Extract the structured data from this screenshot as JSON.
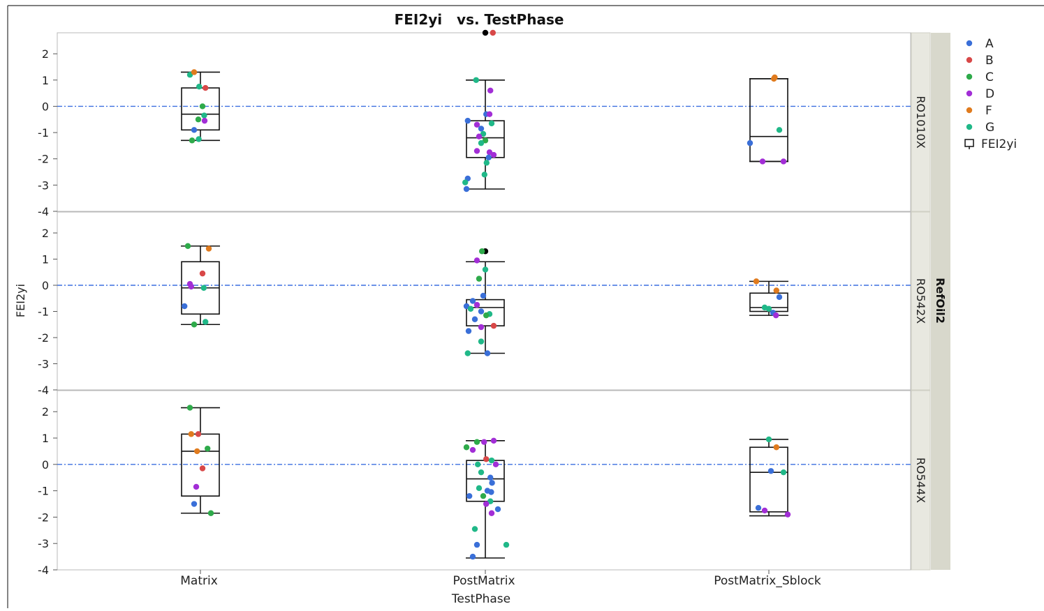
{
  "chart_data": {
    "type": "scatter",
    "title": "FEI2yi   vs. TestPhase",
    "xlabel": "TestPhase",
    "ylabel": "FEI2yi",
    "group_by_label": "RefOil2",
    "categories": [
      "Matrix",
      "PostMatrix",
      "PostMatrix_Sblock"
    ],
    "ylim": [
      -4,
      2.8
    ],
    "yticks": [
      -4,
      -3,
      -2,
      -1,
      0,
      1,
      2
    ],
    "ytick_labels": [
      "-4",
      "-3",
      "-2",
      "-1",
      "0",
      "1",
      "2"
    ],
    "reference_line": 0,
    "legend_placement": "right",
    "legend": [
      {
        "label": "A",
        "color": "#3a6fd8"
      },
      {
        "label": "B",
        "color": "#d84848"
      },
      {
        "label": "C",
        "color": "#2eaa4a"
      },
      {
        "label": "D",
        "color": "#a22ed6"
      },
      {
        "label": "F",
        "color": "#e07b1e"
      },
      {
        "label": "G",
        "color": "#20b888"
      }
    ],
    "box_legend_label": "FEI2yi",
    "colors": {
      "A": "#3a6fd8",
      "B": "#d84848",
      "C": "#2eaa4a",
      "D": "#a22ed6",
      "F": "#e07b1e",
      "G": "#20b888",
      "outlier": "#000000",
      "reference": "#3b6fe0"
    },
    "panels": [
      {
        "label": "RO1010X",
        "boxes": [
          {
            "category": "Matrix",
            "whisker_low": -1.3,
            "q1": -0.9,
            "median": -0.3,
            "q3": 0.7,
            "whisker_high": 1.3
          },
          {
            "category": "PostMatrix",
            "whisker_low": -3.15,
            "q1": -1.95,
            "median": -1.2,
            "q3": -0.55,
            "whisker_high": 1.0
          },
          {
            "category": "PostMatrix_Sblock",
            "whisker_low": -2.1,
            "q1": -2.1,
            "median": -1.15,
            "q3": 1.05,
            "whisker_high": 1.05
          }
        ],
        "points": [
          {
            "c": "Matrix",
            "j": -0.25,
            "y": 1.2,
            "g": "G"
          },
          {
            "c": "Matrix",
            "j": -0.15,
            "y": 1.3,
            "g": "F"
          },
          {
            "c": "Matrix",
            "j": -0.03,
            "y": 0.75,
            "g": "G"
          },
          {
            "c": "Matrix",
            "j": 0.12,
            "y": 0.7,
            "g": "B"
          },
          {
            "c": "Matrix",
            "j": 0.05,
            "y": 0.0,
            "g": "C"
          },
          {
            "c": "Matrix",
            "j": 0.09,
            "y": -0.35,
            "g": "G"
          },
          {
            "c": "Matrix",
            "j": -0.05,
            "y": -0.5,
            "g": "C"
          },
          {
            "c": "Matrix",
            "j": 0.1,
            "y": -0.55,
            "g": "D"
          },
          {
            "c": "Matrix",
            "j": -0.15,
            "y": -0.9,
            "g": "A"
          },
          {
            "c": "Matrix",
            "j": -0.2,
            "y": -1.3,
            "g": "C"
          },
          {
            "c": "Matrix",
            "j": -0.04,
            "y": -1.25,
            "g": "G"
          },
          {
            "c": "PostMatrix",
            "j": 0.0,
            "y": 2.8,
            "g": "outlier"
          },
          {
            "c": "PostMatrix",
            "j": 0.18,
            "y": 2.8,
            "g": "B"
          },
          {
            "c": "PostMatrix",
            "j": -0.22,
            "y": 1.0,
            "g": "G"
          },
          {
            "c": "PostMatrix",
            "j": 0.12,
            "y": 0.6,
            "g": "D"
          },
          {
            "c": "PostMatrix",
            "j": 0.02,
            "y": -0.3,
            "g": "A"
          },
          {
            "c": "PostMatrix",
            "j": 0.1,
            "y": -0.3,
            "g": "D"
          },
          {
            "c": "PostMatrix",
            "j": -0.42,
            "y": -0.55,
            "g": "A"
          },
          {
            "c": "PostMatrix",
            "j": -0.2,
            "y": -0.7,
            "g": "D"
          },
          {
            "c": "PostMatrix",
            "j": -0.1,
            "y": -0.85,
            "g": "A"
          },
          {
            "c": "PostMatrix",
            "j": 0.15,
            "y": -0.65,
            "g": "G"
          },
          {
            "c": "PostMatrix",
            "j": -0.05,
            "y": -1.05,
            "g": "G"
          },
          {
            "c": "PostMatrix",
            "j": -0.15,
            "y": -1.15,
            "g": "D"
          },
          {
            "c": "PostMatrix",
            "j": 0.0,
            "y": -1.3,
            "g": "C"
          },
          {
            "c": "PostMatrix",
            "j": -0.1,
            "y": -1.4,
            "g": "G"
          },
          {
            "c": "PostMatrix",
            "j": -0.2,
            "y": -1.7,
            "g": "D"
          },
          {
            "c": "PostMatrix",
            "j": 0.1,
            "y": -1.75,
            "g": "D"
          },
          {
            "c": "PostMatrix",
            "j": 0.2,
            "y": -1.85,
            "g": "D"
          },
          {
            "c": "PostMatrix",
            "j": 0.08,
            "y": -1.95,
            "g": "A"
          },
          {
            "c": "PostMatrix",
            "j": 0.03,
            "y": -2.15,
            "g": "G"
          },
          {
            "c": "PostMatrix",
            "j": -0.02,
            "y": -2.6,
            "g": "G"
          },
          {
            "c": "PostMatrix",
            "j": -0.42,
            "y": -2.75,
            "g": "A"
          },
          {
            "c": "PostMatrix",
            "j": -0.48,
            "y": -2.9,
            "g": "G"
          },
          {
            "c": "PostMatrix",
            "j": -0.45,
            "y": -3.15,
            "g": "A"
          },
          {
            "c": "PostMatrix_Sblock",
            "j": -0.45,
            "y": -1.4,
            "g": "A"
          },
          {
            "c": "PostMatrix_Sblock",
            "j": -0.15,
            "y": -2.1,
            "g": "D"
          },
          {
            "c": "PostMatrix_Sblock",
            "j": 0.35,
            "y": -2.1,
            "g": "D"
          },
          {
            "c": "PostMatrix_Sblock",
            "j": 0.25,
            "y": -0.9,
            "g": "G"
          },
          {
            "c": "PostMatrix_Sblock",
            "j": 0.12,
            "y": 1.05,
            "g": "F"
          },
          {
            "c": "PostMatrix_Sblock",
            "j": 0.14,
            "y": 1.1,
            "g": "F"
          }
        ]
      },
      {
        "label": "RO542X",
        "boxes": [
          {
            "category": "Matrix",
            "whisker_low": -1.5,
            "q1": -1.1,
            "median": -0.1,
            "q3": 0.9,
            "whisker_high": 1.5
          },
          {
            "category": "PostMatrix",
            "whisker_low": -2.6,
            "q1": -1.55,
            "median": -0.85,
            "q3": -0.55,
            "whisker_high": 0.9
          },
          {
            "category": "PostMatrix_Sblock",
            "whisker_low": -1.15,
            "q1": -1.0,
            "median": -0.85,
            "q3": -0.3,
            "whisker_high": 0.15
          }
        ],
        "points": [
          {
            "c": "Matrix",
            "j": -0.3,
            "y": 1.5,
            "g": "C"
          },
          {
            "c": "Matrix",
            "j": 0.2,
            "y": 1.4,
            "g": "F"
          },
          {
            "c": "Matrix",
            "j": 0.05,
            "y": 0.45,
            "g": "B"
          },
          {
            "c": "Matrix",
            "j": -0.25,
            "y": 0.05,
            "g": "D"
          },
          {
            "c": "Matrix",
            "j": -0.22,
            "y": -0.05,
            "g": "D"
          },
          {
            "c": "Matrix",
            "j": 0.08,
            "y": -0.1,
            "g": "G"
          },
          {
            "c": "Matrix",
            "j": -0.38,
            "y": -0.8,
            "g": "A"
          },
          {
            "c": "Matrix",
            "j": -0.15,
            "y": -1.5,
            "g": "C"
          },
          {
            "c": "Matrix",
            "j": 0.12,
            "y": -1.4,
            "g": "G"
          },
          {
            "c": "PostMatrix",
            "j": 0.0,
            "y": 1.3,
            "g": "outlier"
          },
          {
            "c": "PostMatrix",
            "j": -0.08,
            "y": 1.3,
            "g": "C"
          },
          {
            "c": "PostMatrix",
            "j": -0.2,
            "y": 0.95,
            "g": "D"
          },
          {
            "c": "PostMatrix",
            "j": 0.0,
            "y": 0.6,
            "g": "G"
          },
          {
            "c": "PostMatrix",
            "j": -0.15,
            "y": 0.25,
            "g": "C"
          },
          {
            "c": "PostMatrix",
            "j": -0.05,
            "y": -0.4,
            "g": "A"
          },
          {
            "c": "PostMatrix",
            "j": -0.3,
            "y": -0.6,
            "g": "A"
          },
          {
            "c": "PostMatrix",
            "j": -0.45,
            "y": -0.8,
            "g": "A"
          },
          {
            "c": "PostMatrix",
            "j": -0.2,
            "y": -0.75,
            "g": "D"
          },
          {
            "c": "PostMatrix",
            "j": -0.35,
            "y": -0.9,
            "g": "G"
          },
          {
            "c": "PostMatrix",
            "j": -0.1,
            "y": -1.0,
            "g": "A"
          },
          {
            "c": "PostMatrix",
            "j": 0.1,
            "y": -1.1,
            "g": "G"
          },
          {
            "c": "PostMatrix",
            "j": 0.02,
            "y": -1.15,
            "g": "C"
          },
          {
            "c": "PostMatrix",
            "j": -0.25,
            "y": -1.3,
            "g": "A"
          },
          {
            "c": "PostMatrix",
            "j": -0.1,
            "y": -1.6,
            "g": "D"
          },
          {
            "c": "PostMatrix",
            "j": 0.2,
            "y": -1.55,
            "g": "B"
          },
          {
            "c": "PostMatrix",
            "j": -0.4,
            "y": -1.75,
            "g": "A"
          },
          {
            "c": "PostMatrix",
            "j": -0.1,
            "y": -2.15,
            "g": "G"
          },
          {
            "c": "PostMatrix",
            "j": -0.42,
            "y": -2.6,
            "g": "G"
          },
          {
            "c": "PostMatrix",
            "j": 0.05,
            "y": -2.6,
            "g": "A"
          },
          {
            "c": "PostMatrix_Sblock",
            "j": -0.3,
            "y": 0.15,
            "g": "F"
          },
          {
            "c": "PostMatrix_Sblock",
            "j": 0.18,
            "y": -0.2,
            "g": "F"
          },
          {
            "c": "PostMatrix_Sblock",
            "j": 0.25,
            "y": -0.45,
            "g": "A"
          },
          {
            "c": "PostMatrix_Sblock",
            "j": -0.1,
            "y": -0.85,
            "g": "G"
          },
          {
            "c": "PostMatrix_Sblock",
            "j": 0.0,
            "y": -0.9,
            "g": "G"
          },
          {
            "c": "PostMatrix_Sblock",
            "j": 0.1,
            "y": -1.05,
            "g": "A"
          },
          {
            "c": "PostMatrix_Sblock",
            "j": 0.17,
            "y": -1.15,
            "g": "D"
          }
        ]
      },
      {
        "label": "RO544X",
        "boxes": [
          {
            "category": "Matrix",
            "whisker_low": -1.85,
            "q1": -1.2,
            "median": 0.5,
            "q3": 1.15,
            "whisker_high": 2.15
          },
          {
            "category": "PostMatrix",
            "whisker_low": -3.55,
            "q1": -1.4,
            "median": -0.55,
            "q3": 0.15,
            "whisker_high": 0.9
          },
          {
            "category": "PostMatrix_Sblock",
            "whisker_low": -1.95,
            "q1": -1.8,
            "median": -0.3,
            "q3": 0.65,
            "whisker_high": 0.95
          }
        ],
        "points": [
          {
            "c": "Matrix",
            "j": -0.25,
            "y": 2.15,
            "g": "C"
          },
          {
            "c": "Matrix",
            "j": -0.22,
            "y": 1.15,
            "g": "F"
          },
          {
            "c": "Matrix",
            "j": -0.05,
            "y": 1.15,
            "g": "B"
          },
          {
            "c": "Matrix",
            "j": 0.17,
            "y": 0.6,
            "g": "C"
          },
          {
            "c": "Matrix",
            "j": -0.08,
            "y": 0.5,
            "g": "F"
          },
          {
            "c": "Matrix",
            "j": 0.05,
            "y": -0.15,
            "g": "B"
          },
          {
            "c": "Matrix",
            "j": -0.1,
            "y": -0.85,
            "g": "D"
          },
          {
            "c": "Matrix",
            "j": -0.15,
            "y": -1.5,
            "g": "A"
          },
          {
            "c": "Matrix",
            "j": 0.25,
            "y": -1.85,
            "g": "C"
          },
          {
            "c": "PostMatrix",
            "j": -0.45,
            "y": 0.65,
            "g": "C"
          },
          {
            "c": "PostMatrix",
            "j": -0.3,
            "y": 0.55,
            "g": "D"
          },
          {
            "c": "PostMatrix",
            "j": -0.2,
            "y": 0.85,
            "g": "C"
          },
          {
            "c": "PostMatrix",
            "j": -0.03,
            "y": 0.85,
            "g": "D"
          },
          {
            "c": "PostMatrix",
            "j": 0.2,
            "y": 0.9,
            "g": "D"
          },
          {
            "c": "PostMatrix",
            "j": 0.02,
            "y": 0.2,
            "g": "B"
          },
          {
            "c": "PostMatrix",
            "j": -0.18,
            "y": 0.0,
            "g": "G"
          },
          {
            "c": "PostMatrix",
            "j": 0.15,
            "y": 0.15,
            "g": "G"
          },
          {
            "c": "PostMatrix",
            "j": 0.25,
            "y": 0.0,
            "g": "D"
          },
          {
            "c": "PostMatrix",
            "j": -0.1,
            "y": -0.3,
            "g": "G"
          },
          {
            "c": "PostMatrix",
            "j": 0.12,
            "y": -0.5,
            "g": "A"
          },
          {
            "c": "PostMatrix",
            "j": 0.16,
            "y": -0.7,
            "g": "A"
          },
          {
            "c": "PostMatrix",
            "j": -0.15,
            "y": -0.9,
            "g": "G"
          },
          {
            "c": "PostMatrix",
            "j": 0.05,
            "y": -1.0,
            "g": "A"
          },
          {
            "c": "PostMatrix",
            "j": 0.14,
            "y": -1.05,
            "g": "A"
          },
          {
            "c": "PostMatrix",
            "j": -0.38,
            "y": -1.2,
            "g": "A"
          },
          {
            "c": "PostMatrix",
            "j": -0.05,
            "y": -1.2,
            "g": "C"
          },
          {
            "c": "PostMatrix",
            "j": 0.12,
            "y": -1.4,
            "g": "G"
          },
          {
            "c": "PostMatrix",
            "j": 0.02,
            "y": -1.5,
            "g": "D"
          },
          {
            "c": "PostMatrix",
            "j": 0.3,
            "y": -1.7,
            "g": "A"
          },
          {
            "c": "PostMatrix",
            "j": 0.15,
            "y": -1.85,
            "g": "D"
          },
          {
            "c": "PostMatrix",
            "j": -0.25,
            "y": -2.45,
            "g": "G"
          },
          {
            "c": "PostMatrix",
            "j": -0.2,
            "y": -3.05,
            "g": "A"
          },
          {
            "c": "PostMatrix",
            "j": 0.5,
            "y": -3.05,
            "g": "G"
          },
          {
            "c": "PostMatrix",
            "j": -0.3,
            "y": -3.5,
            "g": "A"
          },
          {
            "c": "PostMatrix_Sblock",
            "j": 0.0,
            "y": 0.95,
            "g": "G"
          },
          {
            "c": "PostMatrix_Sblock",
            "j": 0.18,
            "y": 0.65,
            "g": "F"
          },
          {
            "c": "PostMatrix_Sblock",
            "j": 0.05,
            "y": -0.25,
            "g": "A"
          },
          {
            "c": "PostMatrix_Sblock",
            "j": 0.35,
            "y": -0.3,
            "g": "G"
          },
          {
            "c": "PostMatrix_Sblock",
            "j": -0.25,
            "y": -1.65,
            "g": "A"
          },
          {
            "c": "PostMatrix_Sblock",
            "j": -0.1,
            "y": -1.75,
            "g": "D"
          },
          {
            "c": "PostMatrix_Sblock",
            "j": 0.45,
            "y": -1.9,
            "g": "D"
          }
        ]
      }
    ]
  }
}
